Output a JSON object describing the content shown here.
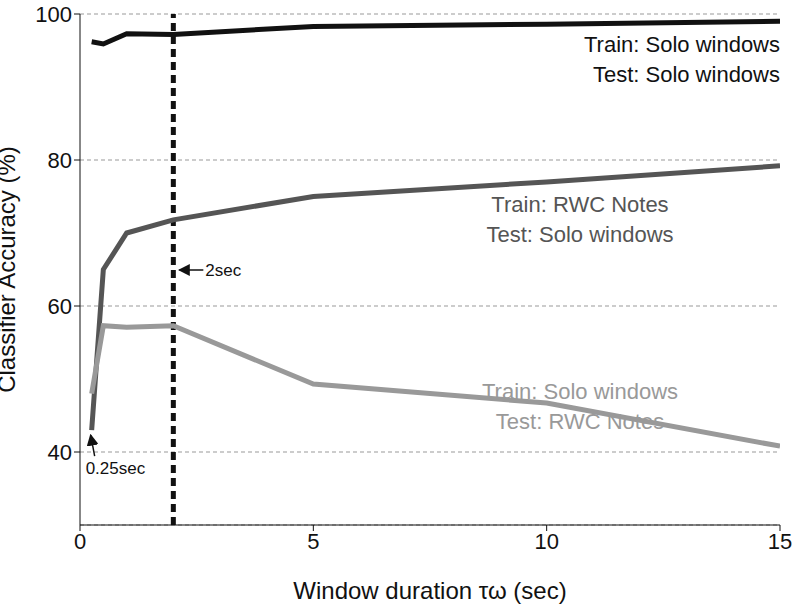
{
  "chart_data": {
    "type": "line",
    "x_label": "Window duration τω (sec)",
    "y_label": "Classifier Accuracy (%)",
    "x": [
      0.25,
      0.5,
      1,
      2,
      5,
      10,
      15
    ],
    "series": [
      {
        "name": "Train: Solo windows\nTest: Solo windows",
        "color": "#111111",
        "values": [
          96.2,
          95.9,
          97.3,
          97.2,
          98.3,
          98.6,
          99.0
        ]
      },
      {
        "name": "Train: RWC Notes\nTest: Solo windows",
        "color": "#555555",
        "values": [
          43,
          65,
          70,
          71.8,
          75,
          77,
          79.2
        ]
      },
      {
        "name": "Train: Solo windows\nTest: RWC Notes",
        "color": "#999999",
        "values": [
          48,
          57.3,
          57.1,
          57.3,
          49.3,
          46.7,
          40.8
        ]
      }
    ],
    "xlim": [
      0,
      15
    ],
    "xticks": [
      0,
      5,
      10,
      15
    ],
    "ylim": [
      30,
      100
    ],
    "yticks": [
      40,
      60,
      80,
      100
    ],
    "grid": true,
    "annotations": [
      {
        "text": "2sec",
        "x": 2,
        "line_style": "dashed"
      },
      {
        "text": "0.25sec",
        "x": 0.25
      }
    ]
  }
}
